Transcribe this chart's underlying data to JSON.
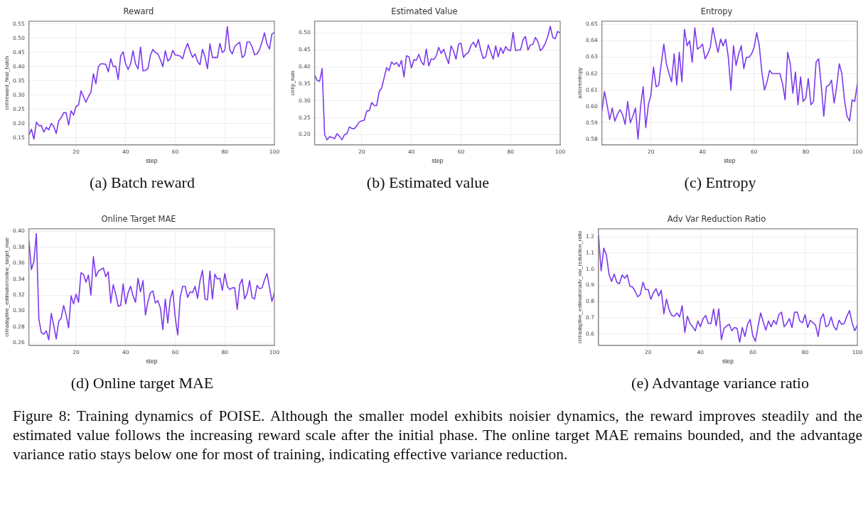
{
  "chart_data": [
    {
      "type": "line",
      "title": "Reward",
      "xlabel": "step",
      "ylabel": "crrl/reward_final_batch",
      "annotations": [
        "(a) Batch reward"
      ],
      "grid": true,
      "legend": false,
      "marker": "none",
      "line_style": "solid",
      "xlim": [
        1,
        100
      ],
      "xticks": [
        20,
        40,
        60,
        80,
        100
      ],
      "ylim": [
        0.125,
        0.56
      ],
      "yticks": [
        0.15,
        {
          "value": 0.2,
          "label": "0.20"
        },
        0.25,
        {
          "value": 0.3,
          "label": "0.30"
        },
        0.35,
        {
          "value": 0.4,
          "label": "0.40"
        },
        0.45,
        {
          "value": 0.5,
          "label": "0.50"
        },
        0.55
      ],
      "x": [
        1,
        2,
        3,
        4,
        5,
        6,
        7,
        8,
        9,
        10,
        11,
        12,
        13,
        14,
        15,
        16,
        17,
        18,
        19,
        20,
        21,
        22,
        23,
        24,
        25,
        26,
        27,
        28,
        29,
        30,
        31,
        32,
        33,
        34,
        35,
        36,
        37,
        38,
        39,
        40,
        41,
        42,
        43,
        44,
        45,
        46,
        47,
        48,
        49,
        50,
        51,
        52,
        53,
        54,
        55,
        56,
        57,
        58,
        59,
        60,
        61,
        62,
        63,
        64,
        65,
        66,
        67,
        68,
        69,
        70,
        71,
        72,
        73,
        74,
        75,
        76,
        77,
        78,
        79,
        80,
        81,
        82,
        83,
        84,
        85,
        86,
        87,
        88,
        89,
        90,
        91,
        92,
        93,
        94,
        95,
        96,
        97,
        98,
        99,
        100
      ],
      "series": [
        {
          "color": "#7c3aed",
          "values": [
            0.16,
            0.18,
            0.145,
            0.205,
            0.193,
            0.193,
            0.17,
            0.187,
            0.178,
            0.2,
            0.19,
            0.165,
            0.21,
            0.22,
            0.238,
            0.238,
            0.195,
            0.245,
            0.23,
            0.26,
            0.265,
            0.315,
            0.295,
            0.275,
            0.295,
            0.31,
            0.375,
            0.34,
            0.4,
            0.41,
            0.41,
            0.408,
            0.382,
            0.428,
            0.4,
            0.402,
            0.355,
            0.438,
            0.452,
            0.41,
            0.39,
            0.41,
            0.456,
            0.41,
            0.392,
            0.469,
            0.385,
            0.387,
            0.393,
            0.44,
            0.461,
            0.45,
            0.445,
            0.425,
            0.4,
            0.456,
            0.42,
            0.428,
            0.457,
            0.441,
            0.44,
            0.437,
            0.428,
            0.46,
            0.482,
            0.455,
            0.433,
            0.445,
            0.418,
            0.407,
            0.461,
            0.435,
            0.393,
            0.48,
            0.432,
            0.433,
            0.432,
            0.482,
            0.45,
            0.457,
            0.541,
            0.46,
            0.445,
            0.47,
            0.48,
            0.486,
            0.432,
            0.44,
            0.487,
            0.487,
            0.47,
            0.442,
            0.445,
            0.46,
            0.487,
            0.519,
            0.48,
            0.462,
            0.515,
            0.521
          ]
        }
      ]
    },
    {
      "type": "line",
      "title": "Estimated Value",
      "xlabel": "step",
      "ylabel": "crrl/p_hats",
      "annotations": [
        "(b) Estimated value"
      ],
      "grid": true,
      "legend": false,
      "marker": "none",
      "line_style": "solid",
      "xlim": [
        1,
        100
      ],
      "xticks": [
        20,
        40,
        60,
        80,
        100
      ],
      "ylim": [
        0.17,
        0.535
      ],
      "yticks": [
        {
          "value": 0.2,
          "label": "0.20"
        },
        0.25,
        {
          "value": 0.3,
          "label": "0.30"
        },
        0.35,
        {
          "value": 0.4,
          "label": "0.40"
        },
        0.45,
        {
          "value": 0.5,
          "label": "0.50"
        }
      ],
      "x": [
        1,
        2,
        3,
        4,
        5,
        6,
        7,
        8,
        9,
        10,
        11,
        12,
        13,
        14,
        15,
        16,
        17,
        18,
        19,
        20,
        21,
        22,
        23,
        24,
        25,
        26,
        27,
        28,
        29,
        30,
        31,
        32,
        33,
        34,
        35,
        36,
        37,
        38,
        39,
        40,
        41,
        42,
        43,
        44,
        45,
        46,
        47,
        48,
        49,
        50,
        51,
        52,
        53,
        54,
        55,
        56,
        57,
        58,
        59,
        60,
        61,
        62,
        63,
        64,
        65,
        66,
        67,
        68,
        69,
        70,
        71,
        72,
        73,
        74,
        75,
        76,
        77,
        78,
        79,
        80,
        81,
        82,
        83,
        84,
        85,
        86,
        87,
        88,
        89,
        90,
        91,
        92,
        93,
        94,
        95,
        96,
        97,
        98,
        99,
        100
      ],
      "series": [
        {
          "color": "#7c3aed",
          "values": [
            0.375,
            0.36,
            0.358,
            0.395,
            0.2,
            0.185,
            0.194,
            0.192,
            0.188,
            0.203,
            0.195,
            0.185,
            0.2,
            0.203,
            0.223,
            0.218,
            0.218,
            0.227,
            0.238,
            0.241,
            0.243,
            0.27,
            0.271,
            0.295,
            0.286,
            0.286,
            0.327,
            0.338,
            0.368,
            0.398,
            0.389,
            0.415,
            0.407,
            0.413,
            0.401,
            0.419,
            0.37,
            0.433,
            0.43,
            0.397,
            0.421,
            0.42,
            0.437,
            0.415,
            0.406,
            0.453,
            0.403,
            0.424,
            0.422,
            0.432,
            0.458,
            0.44,
            0.452,
            0.43,
            0.41,
            0.462,
            0.447,
            0.423,
            0.467,
            0.47,
            0.428,
            0.438,
            0.442,
            0.463,
            0.473,
            0.458,
            0.481,
            0.448,
            0.425,
            0.43,
            0.465,
            0.443,
            0.423,
            0.462,
            0.43,
            0.457,
            0.44,
            0.46,
            0.45,
            0.448,
            0.502,
            0.448,
            0.45,
            0.45,
            0.48,
            0.49,
            0.45,
            0.465,
            0.467,
            0.487,
            0.475,
            0.448,
            0.456,
            0.47,
            0.49,
            0.52,
            0.487,
            0.483,
            0.505,
            0.5
          ]
        }
      ]
    },
    {
      "type": "line",
      "title": "Entropy",
      "xlabel": "step",
      "ylabel": "actor/entropy",
      "annotations": [
        "(c) Entropy"
      ],
      "grid": true,
      "legend": false,
      "marker": "none",
      "line_style": "solid",
      "xlim": [
        1,
        100
      ],
      "xticks": [
        20,
        40,
        60,
        80,
        100
      ],
      "ylim": [
        0.5765,
        0.652
      ],
      "yticks": [
        0.58,
        0.59,
        {
          "value": 0.6,
          "label": "0.60"
        },
        0.61,
        0.62,
        0.63,
        0.64,
        0.65
      ],
      "x": [
        1,
        2,
        3,
        4,
        5,
        6,
        7,
        8,
        9,
        10,
        11,
        12,
        13,
        14,
        15,
        16,
        17,
        18,
        19,
        20,
        21,
        22,
        23,
        24,
        25,
        26,
        27,
        28,
        29,
        30,
        31,
        32,
        33,
        34,
        35,
        36,
        37,
        38,
        39,
        40,
        41,
        42,
        43,
        44,
        45,
        46,
        47,
        48,
        49,
        50,
        51,
        52,
        53,
        54,
        55,
        56,
        57,
        58,
        59,
        60,
        61,
        62,
        63,
        64,
        65,
        66,
        67,
        68,
        69,
        70,
        71,
        72,
        73,
        74,
        75,
        76,
        77,
        78,
        79,
        80,
        81,
        82,
        83,
        84,
        85,
        86,
        87,
        88,
        89,
        90,
        91,
        92,
        93,
        94,
        95,
        96,
        97,
        98,
        99,
        100
      ],
      "series": [
        {
          "color": "#7c3aed",
          "values": [
            0.597,
            0.609,
            0.601,
            0.592,
            0.599,
            0.591,
            0.595,
            0.598,
            0.595,
            0.589,
            0.603,
            0.59,
            0.594,
            0.599,
            0.58,
            0.6,
            0.612,
            0.587,
            0.601,
            0.607,
            0.624,
            0.612,
            0.613,
            0.626,
            0.638,
            0.626,
            0.62,
            0.615,
            0.632,
            0.613,
            0.633,
            0.615,
            0.647,
            0.637,
            0.64,
            0.627,
            0.648,
            0.635,
            0.636,
            0.638,
            0.629,
            0.632,
            0.636,
            0.648,
            0.64,
            0.633,
            0.641,
            0.637,
            0.641,
            0.63,
            0.61,
            0.637,
            0.625,
            0.632,
            0.637,
            0.623,
            0.63,
            0.63,
            0.632,
            0.636,
            0.645,
            0.637,
            0.621,
            0.61,
            0.615,
            0.622,
            0.62,
            0.62,
            0.62,
            0.62,
            0.614,
            0.604,
            0.633,
            0.626,
            0.608,
            0.621,
            0.601,
            0.618,
            0.603,
            0.605,
            0.617,
            0.601,
            0.603,
            0.627,
            0.629,
            0.613,
            0.594,
            0.612,
            0.613,
            0.616,
            0.602,
            0.612,
            0.626,
            0.62,
            0.604,
            0.594,
            0.591,
            0.604,
            0.603,
            0.614
          ]
        }
      ]
    },
    {
      "type": "line",
      "title": "Online Target MAE",
      "xlabel": "step",
      "ylabel": "crrl/adaptive_estimator/online_target_mae",
      "annotations": [
        "(d) Online target MAE"
      ],
      "grid": true,
      "legend": false,
      "marker": "none",
      "line_style": "solid",
      "xlim": [
        1,
        100
      ],
      "xticks": [
        20,
        40,
        60,
        80,
        100
      ],
      "ylim": [
        0.257,
        0.403
      ],
      "yticks": [
        0.26,
        0.28,
        {
          "value": 0.3,
          "label": "0.30"
        },
        0.32,
        0.34,
        0.36,
        0.38,
        {
          "value": 0.4,
          "label": "0.40"
        }
      ],
      "x": [
        1,
        2,
        3,
        4,
        5,
        6,
        7,
        8,
        9,
        10,
        11,
        12,
        13,
        14,
        15,
        16,
        17,
        18,
        19,
        20,
        21,
        22,
        23,
        24,
        25,
        26,
        27,
        28,
        29,
        30,
        31,
        32,
        33,
        34,
        35,
        36,
        37,
        38,
        39,
        40,
        41,
        42,
        43,
        44,
        45,
        46,
        47,
        48,
        49,
        50,
        51,
        52,
        53,
        54,
        55,
        56,
        57,
        58,
        59,
        60,
        61,
        62,
        63,
        64,
        65,
        66,
        67,
        68,
        69,
        70,
        71,
        72,
        73,
        74,
        75,
        76,
        77,
        78,
        79,
        80,
        81,
        82,
        83,
        84,
        85,
        86,
        87,
        88,
        89,
        90,
        91,
        92,
        93,
        94,
        95,
        96,
        97,
        98,
        99,
        100
      ],
      "series": [
        {
          "color": "#7c3aed",
          "values": [
            0.388,
            0.352,
            0.362,
            0.397,
            0.29,
            0.273,
            0.271,
            0.275,
            0.264,
            0.297,
            0.282,
            0.265,
            0.287,
            0.291,
            0.307,
            0.295,
            0.279,
            0.319,
            0.309,
            0.321,
            0.311,
            0.348,
            0.346,
            0.336,
            0.345,
            0.32,
            0.368,
            0.343,
            0.35,
            0.352,
            0.354,
            0.343,
            0.349,
            0.31,
            0.333,
            0.321,
            0.306,
            0.307,
            0.334,
            0.309,
            0.323,
            0.331,
            0.319,
            0.311,
            0.341,
            0.324,
            0.338,
            0.295,
            0.312,
            0.323,
            0.325,
            0.31,
            0.313,
            0.304,
            0.277,
            0.315,
            0.285,
            0.315,
            0.326,
            0.292,
            0.27,
            0.317,
            0.331,
            0.331,
            0.317,
            0.324,
            0.323,
            0.331,
            0.316,
            0.338,
            0.351,
            0.315,
            0.314,
            0.35,
            0.315,
            0.346,
            0.34,
            0.341,
            0.326,
            0.347,
            0.331,
            0.327,
            0.329,
            0.329,
            0.302,
            0.333,
            0.34,
            0.315,
            0.322,
            0.338,
            0.317,
            0.315,
            0.332,
            0.328,
            0.329,
            0.339,
            0.347,
            0.33,
            0.312,
            0.323
          ]
        }
      ]
    },
    {
      "type": "line",
      "title": "Adv Var Reduction Ratio",
      "xlabel": "step",
      "ylabel": "crrl/adaptive_estimator/adv_var_reduction_ratio",
      "annotations": [
        "(e) Advantage variance ratio"
      ],
      "grid": true,
      "legend": false,
      "marker": "none",
      "line_style": "solid",
      "xlim": [
        1,
        100
      ],
      "xticks": [
        20,
        40,
        60,
        80,
        100
      ],
      "ylim": [
        0.53,
        1.25
      ],
      "yticks": [
        0.6,
        0.7,
        0.8,
        0.9,
        {
          "value": 1,
          "label": "1.0"
        },
        1.1,
        1.2
      ],
      "x": [
        1,
        2,
        3,
        4,
        5,
        6,
        7,
        8,
        9,
        10,
        11,
        12,
        13,
        14,
        15,
        16,
        17,
        18,
        19,
        20,
        21,
        22,
        23,
        24,
        25,
        26,
        27,
        28,
        29,
        30,
        31,
        32,
        33,
        34,
        35,
        36,
        37,
        38,
        39,
        40,
        41,
        42,
        43,
        44,
        45,
        46,
        47,
        48,
        49,
        50,
        51,
        52,
        53,
        54,
        55,
        56,
        57,
        58,
        59,
        60,
        61,
        62,
        63,
        64,
        65,
        66,
        67,
        68,
        69,
        70,
        71,
        72,
        73,
        74,
        75,
        76,
        77,
        78,
        79,
        80,
        81,
        82,
        83,
        84,
        85,
        86,
        87,
        88,
        89,
        90,
        91,
        92,
        93,
        94,
        95,
        96,
        97,
        98,
        99,
        100
      ],
      "series": [
        {
          "color": "#7c3aed",
          "values": [
            1.21,
            0.99,
            1.13,
            1.09,
            0.97,
            0.925,
            0.97,
            0.92,
            0.91,
            0.965,
            0.945,
            0.965,
            0.895,
            0.89,
            0.865,
            0.83,
            0.845,
            0.92,
            0.875,
            0.875,
            0.815,
            0.855,
            0.88,
            0.835,
            0.87,
            0.725,
            0.815,
            0.75,
            0.715,
            0.71,
            0.73,
            0.705,
            0.775,
            0.61,
            0.71,
            0.665,
            0.645,
            0.62,
            0.68,
            0.645,
            0.695,
            0.715,
            0.665,
            0.665,
            0.755,
            0.65,
            0.755,
            0.565,
            0.635,
            0.65,
            0.66,
            0.62,
            0.64,
            0.635,
            0.55,
            0.64,
            0.585,
            0.66,
            0.69,
            0.59,
            0.555,
            0.645,
            0.73,
            0.675,
            0.625,
            0.68,
            0.645,
            0.685,
            0.66,
            0.72,
            0.735,
            0.645,
            0.665,
            0.695,
            0.64,
            0.735,
            0.735,
            0.68,
            0.67,
            0.72,
            0.64,
            0.685,
            0.67,
            0.655,
            0.585,
            0.695,
            0.725,
            0.645,
            0.655,
            0.705,
            0.645,
            0.625,
            0.685,
            0.66,
            0.665,
            0.71,
            0.745,
            0.67,
            0.62,
            0.655
          ]
        }
      ]
    },
    {
      "type": "other",
      "annotations": [
        "Figure 8: Training dynamics of POISE. Although the smaller model exhibits noisier dynamics, the reward improves steadily and the estimated value follows the increasing reward scale after the initial phase. The online target MAE remains bounded, and the advantage variance ratio stays below one for most of training, indicating effective variance reduction."
      ]
    }
  ]
}
